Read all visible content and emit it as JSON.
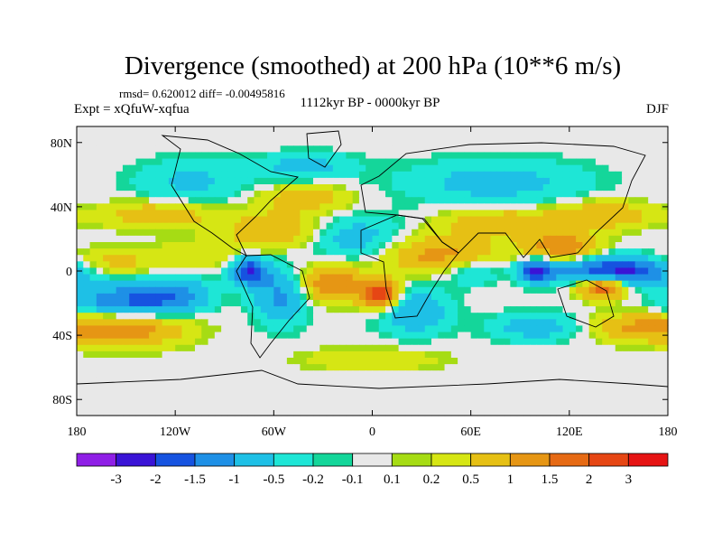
{
  "chart_data": {
    "type": "heatmap",
    "title": "Divergence (smoothed) at 200 hPa (10**6 m/s)",
    "stats": "rmsd= 0.620012  diff= -0.00495816",
    "experiment": "Expt = xQfuW-xqfua",
    "period": "1112kyr BP - 0000kyr BP",
    "season": "DJF",
    "x_ticks": [
      {
        "label": "180",
        "value": -180
      },
      {
        "label": "120W",
        "value": -120
      },
      {
        "label": "60W",
        "value": -60
      },
      {
        "label": "0",
        "value": 0
      },
      {
        "label": "60E",
        "value": 60
      },
      {
        "label": "120E",
        "value": 120
      },
      {
        "label": "180",
        "value": 180
      }
    ],
    "y_ticks": [
      {
        "label": "80N",
        "value": 80
      },
      {
        "label": "40N",
        "value": 40
      },
      {
        "label": "0",
        "value": 0
      },
      {
        "label": "40S",
        "value": -40
      },
      {
        "label": "80S",
        "value": -80
      }
    ],
    "xlim": [
      -180,
      180
    ],
    "ylim": [
      -90,
      90
    ],
    "colorbar": {
      "colors": [
        "#8f1fe6",
        "#3a14d6",
        "#1653e0",
        "#1e90e6",
        "#1ec0e6",
        "#1ee6d6",
        "#14d69a",
        "#e8e8e8",
        "#a6dc14",
        "#d6e614",
        "#e6c014",
        "#e69614",
        "#e66a14",
        "#e64614",
        "#e61414"
      ],
      "labels": [
        "-3",
        "-2",
        "-1.5",
        "-1",
        "-0.5",
        "-0.2",
        "-0.1",
        "0.1",
        "0.2",
        "0.5",
        "1",
        "1.5",
        "2",
        "3"
      ]
    },
    "features": [
      {
        "lon": -150,
        "lat": -20,
        "value": -1.6,
        "lonScale": 22,
        "latScale": 8
      },
      {
        "lon": -120,
        "lat": -15,
        "value": -1.0,
        "lonScale": 15,
        "latScale": 8
      },
      {
        "lon": -75,
        "lat": 0,
        "value": -2.0,
        "lonScale": 8,
        "latScale": 6
      },
      {
        "lon": -55,
        "lat": -15,
        "value": -1.2,
        "lonScale": 12,
        "latScale": 12
      },
      {
        "lon": -150,
        "lat": -35,
        "value": 1.5,
        "lonScale": 25,
        "latScale": 8
      },
      {
        "lon": -160,
        "lat": 5,
        "value": 0.8,
        "lonScale": 18,
        "latScale": 6
      },
      {
        "lon": -105,
        "lat": 10,
        "value": 0.5,
        "lonScale": 20,
        "latScale": 6
      },
      {
        "lon": -130,
        "lat": 35,
        "value": 0.9,
        "lonScale": 25,
        "latScale": 6
      },
      {
        "lon": -110,
        "lat": 55,
        "value": -0.6,
        "lonScale": 25,
        "latScale": 10
      },
      {
        "lon": -60,
        "lat": 25,
        "value": 1.0,
        "lonScale": 20,
        "latScale": 8
      },
      {
        "lon": -40,
        "lat": 45,
        "value": 0.8,
        "lonScale": 20,
        "latScale": 6
      },
      {
        "lon": -25,
        "lat": -8,
        "value": 1.5,
        "lonScale": 15,
        "latScale": 8
      },
      {
        "lon": -10,
        "lat": 20,
        "value": -0.8,
        "lonScale": 20,
        "latScale": 10
      },
      {
        "lon": 5,
        "lat": -15,
        "value": 2.5,
        "lonScale": 8,
        "latScale": 6
      },
      {
        "lon": 25,
        "lat": -25,
        "value": -1.0,
        "lonScale": 15,
        "latScale": 10
      },
      {
        "lon": 40,
        "lat": 10,
        "value": 1.2,
        "lonScale": 25,
        "latScale": 8
      },
      {
        "lon": 60,
        "lat": 0,
        "value": -0.7,
        "lonScale": 12,
        "latScale": 6
      },
      {
        "lon": 75,
        "lat": 55,
        "value": -0.7,
        "lonScale": 40,
        "latScale": 10
      },
      {
        "lon": 80,
        "lat": 30,
        "value": 1.0,
        "lonScale": 25,
        "latScale": 6
      },
      {
        "lon": 100,
        "lat": 0,
        "value": -2.0,
        "lonScale": 8,
        "latScale": 5
      },
      {
        "lon": 150,
        "lat": 0,
        "value": -2.2,
        "lonScale": 25,
        "latScale": 6
      },
      {
        "lon": 140,
        "lat": -10,
        "value": 2.0,
        "lonScale": 10,
        "latScale": 5
      },
      {
        "lon": 115,
        "lat": 15,
        "value": 1.5,
        "lonScale": 15,
        "latScale": 6
      },
      {
        "lon": 140,
        "lat": 35,
        "value": 1.0,
        "lonScale": 20,
        "latScale": 6
      },
      {
        "lon": 100,
        "lat": -35,
        "value": -0.8,
        "lonScale": 20,
        "latScale": 6
      },
      {
        "lon": 160,
        "lat": -35,
        "value": 1.0,
        "lonScale": 20,
        "latScale": 6
      },
      {
        "lon": -40,
        "lat": 65,
        "value": -0.7,
        "lonScale": 20,
        "latScale": 6
      },
      {
        "lon": 0,
        "lat": -55,
        "value": 0.5,
        "lonScale": 30,
        "latScale": 5
      }
    ]
  }
}
